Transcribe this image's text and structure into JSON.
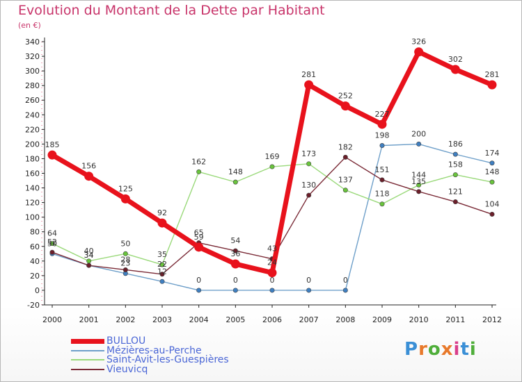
{
  "header": {
    "title": "Evolution du Montant de la Dette par Habitant",
    "subtitle": "(en €)"
  },
  "logo": {
    "text": "Proxiti",
    "letters": [
      "P",
      "r",
      "o",
      "x",
      "i",
      "t",
      "i"
    ],
    "colors": [
      "#3a8fd6",
      "#e8792b",
      "#4fae3a",
      "#e8792b",
      "#d93e8a",
      "#3a8fd6",
      "#4fae3a"
    ]
  },
  "chart_data": {
    "type": "line",
    "title": "Evolution du Montant de la Dette par Habitant",
    "subtitle": "(en €)",
    "xlabel": "",
    "ylabel": "",
    "x": [
      "2000",
      "2001",
      "2002",
      "2003",
      "2004",
      "2005",
      "2006",
      "2007",
      "2008",
      "2009",
      "2010",
      "2011",
      "2012"
    ],
    "ylim": [
      -20,
      340
    ],
    "yticks": [
      -20,
      0,
      20,
      40,
      60,
      80,
      100,
      120,
      140,
      160,
      180,
      200,
      220,
      240,
      260,
      280,
      300,
      320,
      340
    ],
    "grid": false,
    "legend_position": "bottom-left",
    "series": [
      {
        "name": "BULLOU",
        "color": "#e8121c",
        "marker": "#e8121c",
        "values": [
          185,
          156,
          125,
          92,
          59,
          36,
          24,
          281,
          252,
          227,
          326,
          302,
          281
        ],
        "labels": [
          "185",
          "156",
          "125",
          "92",
          "59",
          "36",
          "24",
          "281",
          "252",
          "227",
          "326",
          "302",
          "281"
        ]
      },
      {
        "name": "Mézières-au-Perche",
        "color": "#6e9fc9",
        "marker": "#3f7fc1",
        "values": [
          50,
          34,
          23,
          12,
          0,
          0,
          0,
          0,
          0,
          198,
          200,
          186,
          174
        ],
        "labels": [
          "50",
          "34",
          "23",
          "12",
          "0",
          "0",
          "0",
          "0",
          "0",
          "198",
          "200",
          "186",
          "174"
        ]
      },
      {
        "name": "Saint-Avit-les-Guespières",
        "color": "#9ad97a",
        "marker": "#69c43c",
        "values": [
          64,
          40,
          50,
          35,
          162,
          148,
          169,
          173,
          137,
          118,
          144,
          158,
          148
        ],
        "labels": [
          "64",
          "40",
          "50",
          "35",
          "162",
          "148",
          "169",
          "173",
          "137",
          "118",
          "144",
          "158",
          "148"
        ]
      },
      {
        "name": "Vieuvicq",
        "color": "#7a2a36",
        "marker": "#6b1f2a",
        "values": [
          52,
          34,
          28,
          22,
          65,
          54,
          43,
          130,
          182,
          151,
          135,
          121,
          104
        ],
        "labels": [
          "52",
          "34",
          "28",
          "22",
          "65",
          "54",
          "43",
          "130",
          "182",
          "151",
          "135",
          "121",
          "104"
        ]
      }
    ]
  }
}
